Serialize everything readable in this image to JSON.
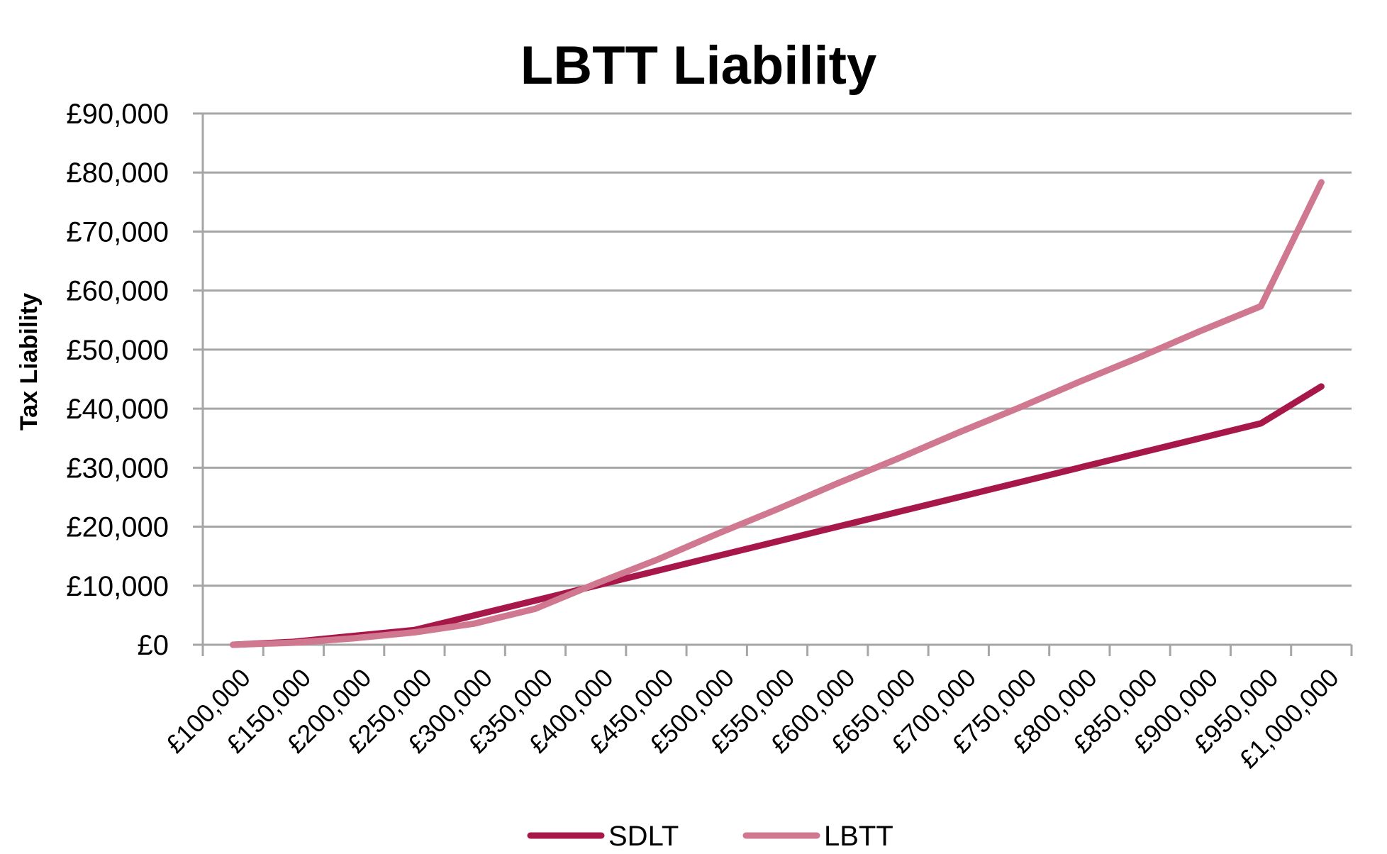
{
  "chart_data": {
    "type": "line",
    "title": "LBTT Liability",
    "xlabel": "",
    "ylabel": "Tax Liability",
    "ylim": [
      0,
      90000
    ],
    "yticks": [
      "£0",
      "£10,000",
      "£20,000",
      "£30,000",
      "£40,000",
      "£50,000",
      "£60,000",
      "£70,000",
      "£80,000",
      "£90,000"
    ],
    "ytick_values": [
      0,
      10000,
      20000,
      30000,
      40000,
      50000,
      60000,
      70000,
      80000,
      90000
    ],
    "categories": [
      "£100,000",
      "£150,000",
      "£200,000",
      "£250,000",
      "£300,000",
      "£350,000",
      "£400,000",
      "£450,000",
      "£500,000",
      "£550,000",
      "£600,000",
      "£650,000",
      "£700,000",
      "£750,000",
      "£800,000",
      "£850,000",
      "£900,000",
      "£950,000",
      "£1,000,000"
    ],
    "grid": true,
    "legend": "bottom",
    "series": [
      {
        "name": "SDLT",
        "color": "#a8174a",
        "values": [
          0,
          500,
          1500,
          2500,
          5000,
          7500,
          10000,
          12500,
          15000,
          17500,
          20000,
          22500,
          25000,
          27500,
          30000,
          32500,
          35000,
          37500,
          43750
        ]
      },
      {
        "name": "LBTT",
        "color": "#d07890",
        "values": [
          0,
          350,
          1100,
          2100,
          3600,
          6100,
          10350,
          14350,
          18750,
          22950,
          27350,
          31550,
          35950,
          40150,
          44550,
          48750,
          53150,
          57350,
          78350
        ]
      }
    ]
  }
}
